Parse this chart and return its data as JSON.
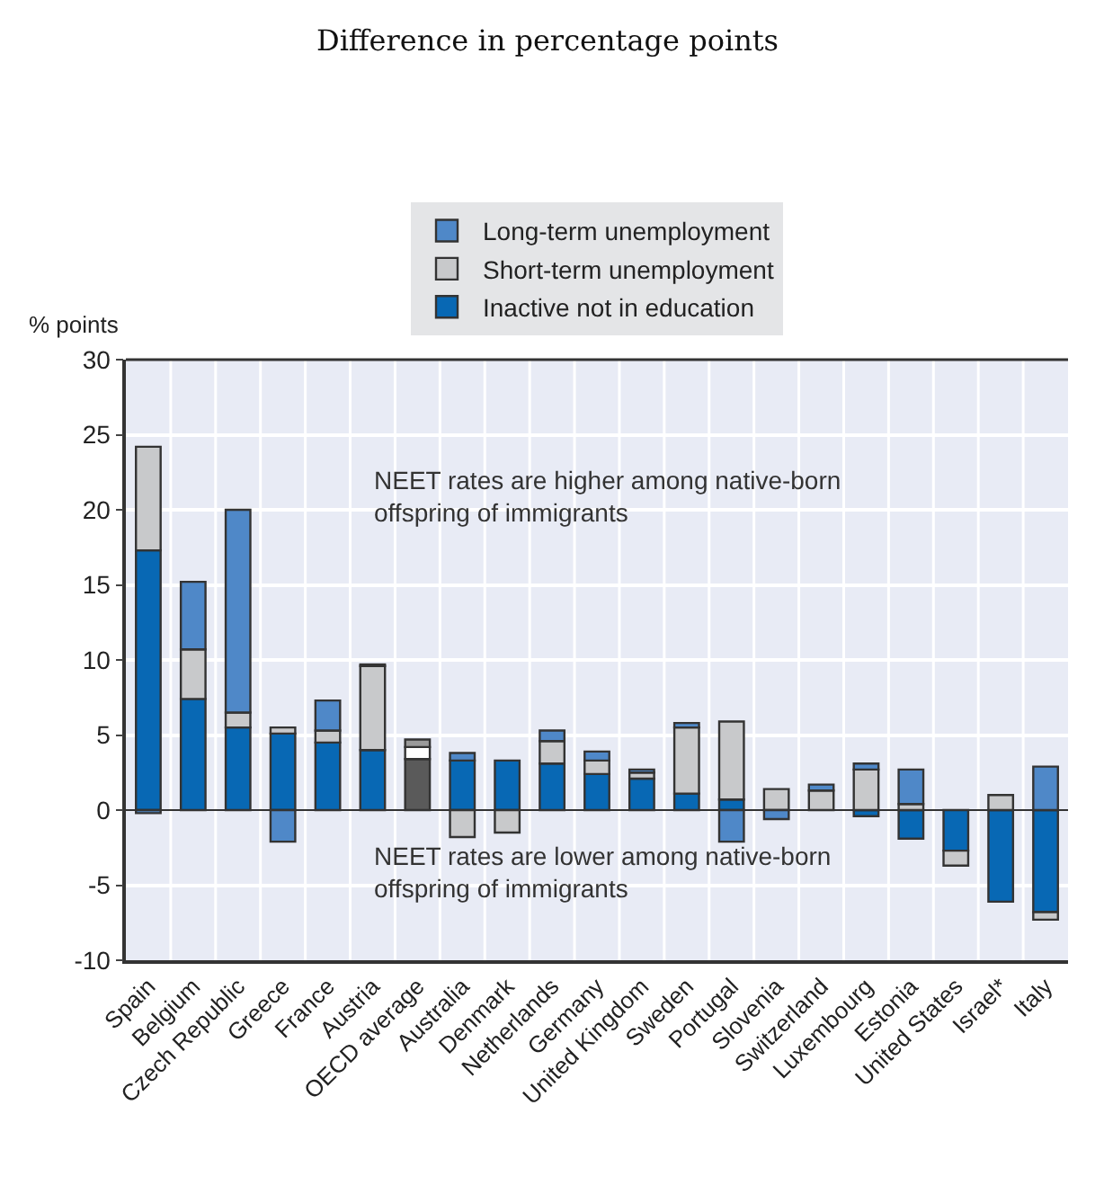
{
  "chart_data": {
    "type": "bar",
    "stacked": true,
    "title": "Difference in percentage points",
    "ylabel": "% points",
    "categories": [
      "Spain",
      "Belgium",
      "Czech Republic",
      "Greece",
      "France",
      "Austria",
      "OECD average",
      "Australia",
      "Denmark",
      "Netherlands",
      "Germany",
      "United Kingdom",
      "Sweden",
      "Portugal",
      "Slovenia",
      "Switzerland",
      "Luxembourg",
      "Estonia",
      "United States",
      "Israel*",
      "Italy"
    ],
    "series": [
      {
        "name": "Inactive not in education",
        "color": "#0868b4",
        "colors": [
          "#0868b4",
          "#0868b4",
          "#0868b4",
          "#0868b4",
          "#0868b4",
          "#0868b4",
          "#5a5a5a",
          "#0868b4",
          "#0868b4",
          "#0868b4",
          "#0868b4",
          "#0868b4",
          "#0868b4",
          "#0868b4",
          "#0868b4",
          "#0868b4",
          "#0868b4",
          "#0868b4",
          "#0868b4",
          "#0868b4",
          "#0868b4"
        ],
        "values": [
          17.3,
          7.4,
          5.5,
          5.1,
          4.5,
          4.0,
          3.4,
          3.3,
          3.3,
          3.1,
          2.4,
          2.1,
          1.1,
          0.7,
          null,
          null,
          -0.4,
          -1.9,
          -2.7,
          -6.1,
          -6.8
        ]
      },
      {
        "name": "Short-term unemployment",
        "color": "#c8c9cb",
        "colors": [
          "#c8c9cb",
          "#c8c9cb",
          "#c8c9cb",
          "#c8c9cb",
          "#c8c9cb",
          "#c8c9cb",
          "#ffffff",
          "#c8c9cb",
          "#c8c9cb",
          "#c8c9cb",
          "#c8c9cb",
          "#c8c9cb",
          "#c8c9cb",
          "#c8c9cb",
          "#c8c9cb",
          "#c8c9cb",
          "#c8c9cb",
          "#c8c9cb",
          "#c8c9cb",
          "#c8c9cb",
          "#c8c9cb"
        ],
        "values": [
          6.9,
          3.3,
          1.0,
          0.4,
          0.8,
          5.6,
          0.8,
          -1.8,
          -1.5,
          1.5,
          0.9,
          0.4,
          4.4,
          5.2,
          1.4,
          1.3,
          2.7,
          0.4,
          -1.0,
          1.0,
          -0.5
        ]
      },
      {
        "name": "Long-term unemployment",
        "color": "#4f88c8",
        "colors": [
          "#4f88c8",
          "#4f88c8",
          "#4f88c8",
          "#4f88c8",
          "#4f88c8",
          "#4f88c8",
          "#9a9a9a",
          "#4f88c8",
          "#4f88c8",
          "#4f88c8",
          "#4f88c8",
          "#4f88c8",
          "#4f88c8",
          "#4f88c8",
          "#4f88c8",
          "#4f88c8",
          "#4f88c8",
          "#4f88c8",
          "#4f88c8",
          "#4f88c8",
          "#4f88c8"
        ],
        "values": [
          -0.2,
          4.5,
          13.5,
          -2.1,
          2.0,
          0.1,
          0.5,
          0.5,
          null,
          0.7,
          0.6,
          0.2,
          0.3,
          -2.1,
          -0.6,
          0.4,
          0.4,
          2.3,
          null,
          null,
          2.9
        ]
      }
    ],
    "ylim": [
      -10,
      30
    ],
    "yticks": [
      -10,
      -5,
      0,
      5,
      10,
      15,
      20,
      25,
      30
    ],
    "grid": true,
    "legend": "top",
    "annotations": [
      "NEET rates are higher among native-born offspring of immigrants",
      "NEET rates are lower among native-born offspring of immigrants"
    ]
  }
}
